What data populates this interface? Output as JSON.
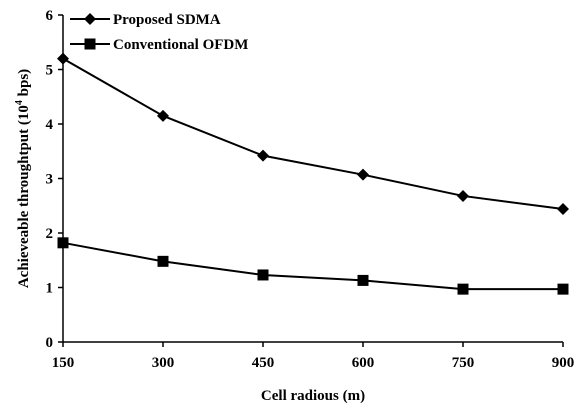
{
  "chart_data": {
    "type": "line",
    "x": [
      150,
      300,
      450,
      600,
      750,
      900
    ],
    "xticks": [
      "150",
      "300",
      "450",
      "600",
      "750",
      "900"
    ],
    "yticks": [
      "0",
      "1",
      "2",
      "3",
      "4",
      "5",
      "6"
    ],
    "xlim": [
      150,
      900
    ],
    "ylim": [
      0,
      6
    ],
    "xlabel": "Cell radious (m)",
    "ylabel": "Achieveable throughtput (10",
    "ylabel_exp": "4",
    "ylabel_tail": " bps)",
    "grid": false,
    "legend_position": "top-left",
    "series": [
      {
        "name": "Proposed SDMA",
        "marker": "diamond",
        "color": "#000000",
        "values": [
          5.2,
          4.15,
          3.42,
          3.07,
          2.68,
          2.44
        ]
      },
      {
        "name": "Conventional OFDM",
        "marker": "square",
        "color": "#000000",
        "values": [
          1.82,
          1.48,
          1.23,
          1.13,
          0.97,
          0.97
        ]
      }
    ]
  }
}
